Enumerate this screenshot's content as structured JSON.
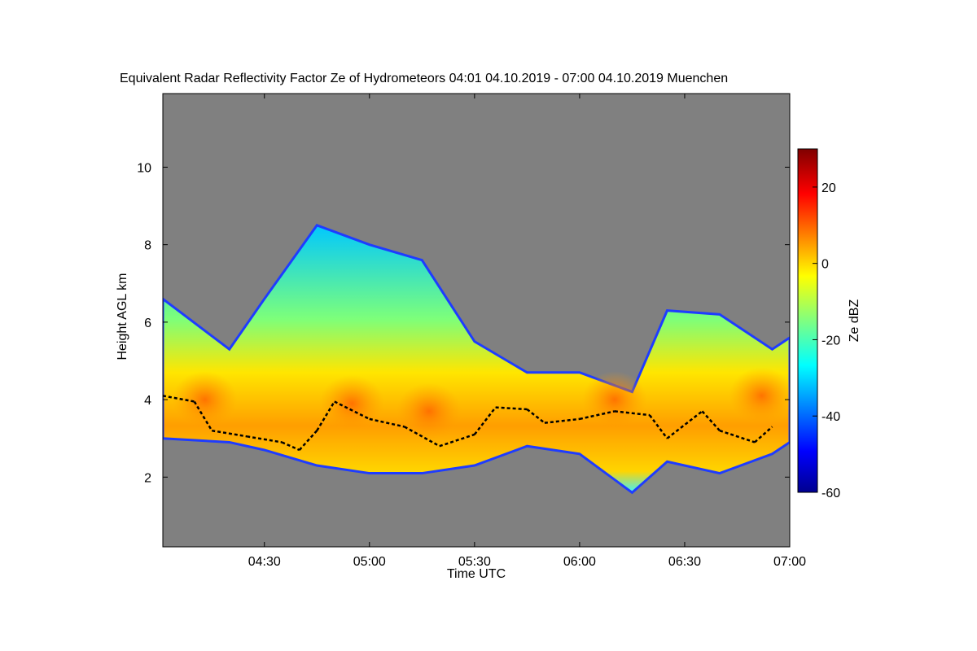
{
  "chart_data": {
    "type": "heatmap",
    "title": "Equivalent Radar Reflectivity Factor Ze of Hydrometeors   04:01 04.10.2019 - 07:00 04.10.2019 Muenchen",
    "xlabel": "Time UTC",
    "ylabel": "Height AGL km",
    "xlim": [
      "04:01",
      "07:00"
    ],
    "x_ticks": [
      "04:30",
      "05:00",
      "05:30",
      "06:00",
      "06:30",
      "07:00"
    ],
    "ylim": [
      0.2,
      11.9
    ],
    "y_ticks": [
      2,
      4,
      6,
      8,
      10
    ],
    "background_color": "#808080",
    "colorbar": {
      "label": "Ze dBZ",
      "range": [
        -60,
        30
      ],
      "ticks": [
        -60,
        -40,
        -20,
        0,
        20
      ],
      "colormap": "jet"
    },
    "echo_layer": {
      "description": "cloud/precipitation echo",
      "top_km_by_time": [
        {
          "t": "04:01",
          "top": 6.6,
          "base": 3.0
        },
        {
          "t": "04:20",
          "top": 5.3,
          "base": 2.9
        },
        {
          "t": "04:30",
          "top": 6.6,
          "base": 2.7
        },
        {
          "t": "04:45",
          "top": 8.5,
          "base": 2.3
        },
        {
          "t": "05:00",
          "top": 8.0,
          "base": 2.1
        },
        {
          "t": "05:15",
          "top": 7.6,
          "base": 2.1
        },
        {
          "t": "05:30",
          "top": 5.5,
          "base": 2.3
        },
        {
          "t": "05:45",
          "top": 4.7,
          "base": 2.8
        },
        {
          "t": "06:00",
          "top": 4.7,
          "base": 2.6
        },
        {
          "t": "06:15",
          "top": 4.2,
          "base": 1.6
        },
        {
          "t": "06:25",
          "top": 6.3,
          "base": 2.4
        },
        {
          "t": "06:40",
          "top": 6.2,
          "base": 2.1
        },
        {
          "t": "06:55",
          "top": 5.3,
          "base": 2.6
        },
        {
          "t": "07:00",
          "top": 5.6,
          "base": 2.9
        }
      ],
      "peak_dbz": 15
    },
    "melting_layer": {
      "color": "#000000",
      "points": [
        {
          "t": "04:01",
          "h": 4.1
        },
        {
          "t": "04:10",
          "h": 3.95
        },
        {
          "t": "04:15",
          "h": 3.2
        },
        {
          "t": "04:25",
          "h": 3.05
        },
        {
          "t": "04:35",
          "h": 2.9
        },
        {
          "t": "04:40",
          "h": 2.7
        },
        {
          "t": "04:45",
          "h": 3.2
        },
        {
          "t": "04:50",
          "h": 3.95
        },
        {
          "t": "05:00",
          "h": 3.5
        },
        {
          "t": "05:10",
          "h": 3.3
        },
        {
          "t": "05:20",
          "h": 2.8
        },
        {
          "t": "05:30",
          "h": 3.1
        },
        {
          "t": "05:36",
          "h": 3.8
        },
        {
          "t": "05:45",
          "h": 3.75
        },
        {
          "t": "05:50",
          "h": 3.4
        },
        {
          "t": "06:00",
          "h": 3.5
        },
        {
          "t": "06:10",
          "h": 3.7
        },
        {
          "t": "06:20",
          "h": 3.6
        },
        {
          "t": "06:25",
          "h": 3.0
        },
        {
          "t": "06:35",
          "h": 3.7
        },
        {
          "t": "06:40",
          "h": 3.2
        },
        {
          "t": "06:50",
          "h": 2.9
        },
        {
          "t": "06:55",
          "h": 3.3
        }
      ]
    }
  }
}
